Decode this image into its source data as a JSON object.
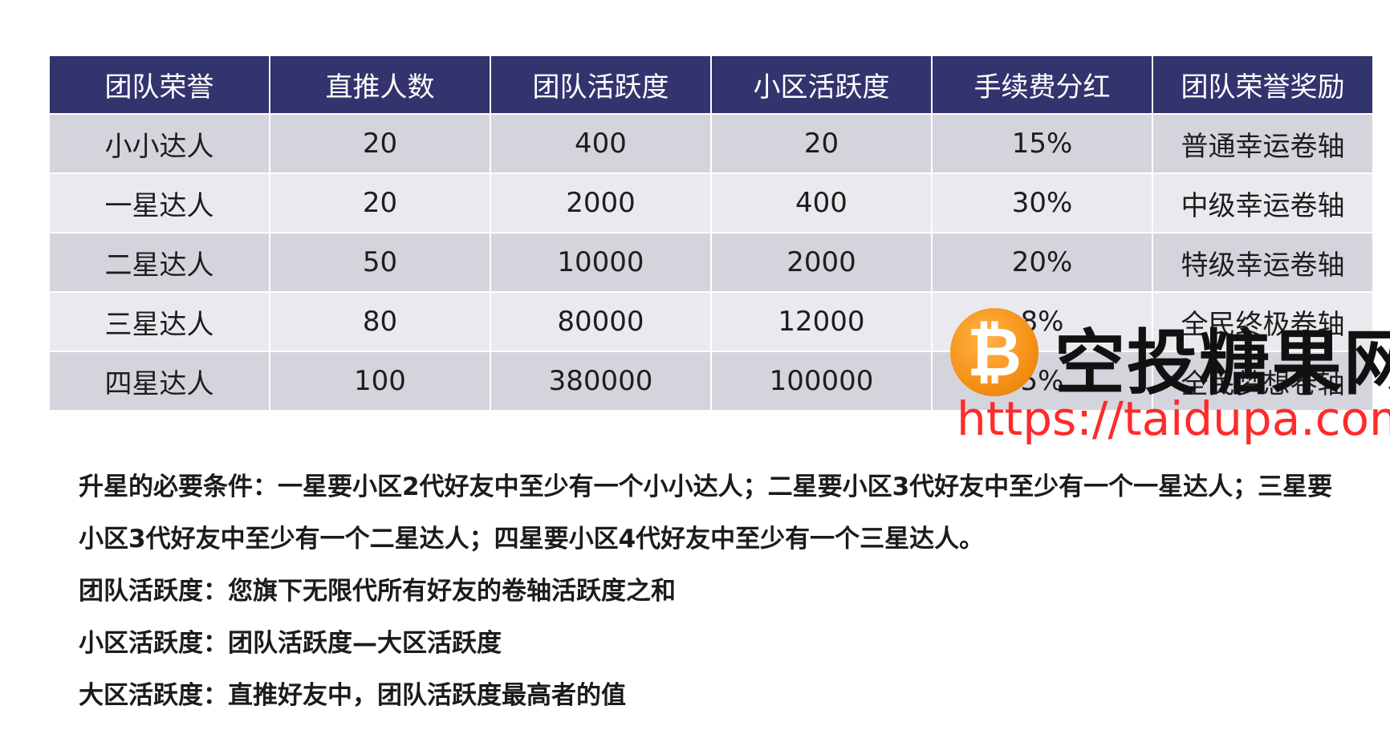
{
  "table": {
    "headers": [
      "团队荣誉",
      "直推人数",
      "团队活跃度",
      "小区活跃度",
      "手续费分红",
      "团队荣誉奖励"
    ],
    "rows": [
      [
        "小小达人",
        "20",
        "400",
        "20",
        "15%",
        "普通幸运卷轴"
      ],
      [
        "一星达人",
        "20",
        "2000",
        "400",
        "30%",
        "中级幸运卷轴"
      ],
      [
        "二星达人",
        "50",
        "10000",
        "2000",
        "20%",
        "特级幸运卷轴"
      ],
      [
        "三星达人",
        "80",
        "80000",
        "12000",
        "8%",
        "全民终极卷轴"
      ],
      [
        "四星达人",
        "100",
        "380000",
        "100000",
        "5%",
        "全民梦想卷轴"
      ]
    ]
  },
  "notes": {
    "requirement": "升星的必要条件：一星要小区2代好友中至少有一个小小达人；二星要小区3代好友中至少有一个一星达人；三星要小区3代好友中至少有一个二星达人；四星要小区4代好友中至少有一个三星达人。",
    "team_activity": "团队活跃度：您旗下无限代所有好友的卷轴活跃度之和",
    "small_zone_activity": "小区活跃度：团队活跃度—大区活跃度",
    "big_zone_activity": "大区活跃度：直推好友中，团队活跃度最高者的值"
  },
  "watermark": {
    "coin_symbol": "₿",
    "title": "空投糖果网",
    "url": "https://taidupa.com",
    "coin_icon": "bitcoin-icon",
    "url_color": "#ff2a2a"
  },
  "colors": {
    "header_bg": "#33336e",
    "row_dark": "#d4d4dd",
    "row_light": "#e9e9ee"
  }
}
